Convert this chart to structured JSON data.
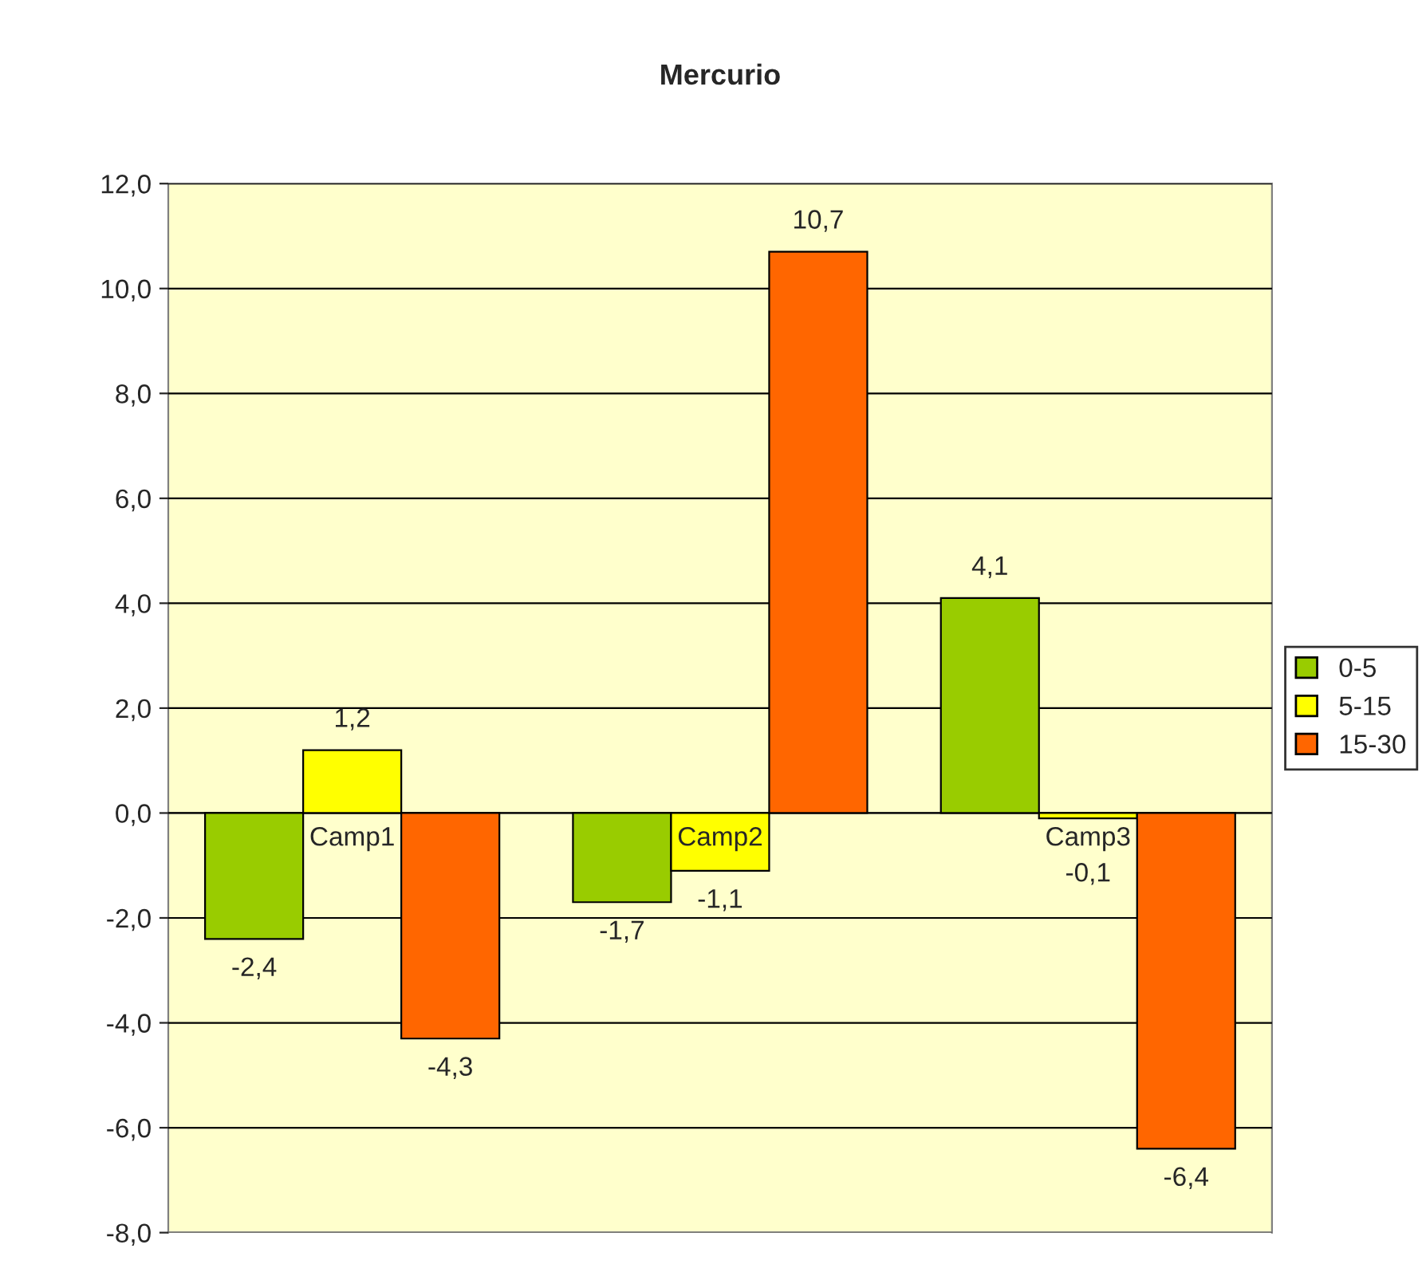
{
  "chart_data": {
    "type": "bar",
    "title": "Mercurio",
    "categories": [
      "Camp1",
      "Camp2",
      "Camp3"
    ],
    "series": [
      {
        "name": "0-5",
        "color": "#99cc00",
        "values": [
          -2.4,
          -1.7,
          4.1
        ],
        "value_labels": [
          "-2,4",
          "-1,7",
          "4,1"
        ]
      },
      {
        "name": "5-15",
        "color": "#ffff00",
        "values": [
          1.2,
          -1.1,
          -0.1
        ],
        "value_labels": [
          "1,2",
          "-1,1",
          "-0,1"
        ]
      },
      {
        "name": "15-30",
        "color": "#ff6600",
        "values": [
          -4.3,
          10.7,
          -6.4
        ],
        "value_labels": [
          "-4,3",
          "10,7",
          "-6,4"
        ]
      }
    ],
    "ylim": [
      -8,
      12
    ],
    "yticks": [
      {
        "value": -8,
        "label": "-8,0"
      },
      {
        "value": -6,
        "label": "-6,0"
      },
      {
        "value": -4,
        "label": "-4,0"
      },
      {
        "value": -2,
        "label": "-2,0"
      },
      {
        "value": 0,
        "label": "0,0"
      },
      {
        "value": 2,
        "label": "2,0"
      },
      {
        "value": 4,
        "label": "4,0"
      },
      {
        "value": 6,
        "label": "6,0"
      },
      {
        "value": 8,
        "label": "8,0"
      },
      {
        "value": 10,
        "label": "10,0"
      },
      {
        "value": 12,
        "label": "12,0"
      }
    ],
    "grid": "y",
    "legend": "right"
  }
}
